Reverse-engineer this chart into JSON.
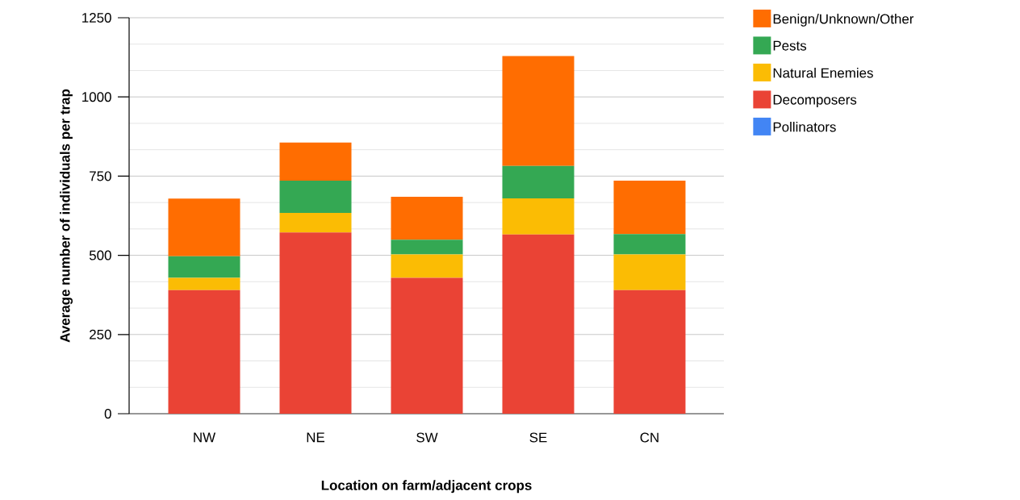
{
  "chart_data": {
    "type": "bar",
    "stacked": true,
    "xlabel": "Location on farm/adjacent crops",
    "ylabel": "Average number of individuals per trap",
    "categories": [
      "NW",
      "NE",
      "SW",
      "SE",
      "CN"
    ],
    "series": [
      {
        "name": "Pollinators",
        "color": "#4285f4",
        "values": [
          0,
          0,
          0,
          0,
          0
        ]
      },
      {
        "name": "Decomposers",
        "color": "#ea4335",
        "values": [
          390,
          572,
          429,
          566,
          390
        ]
      },
      {
        "name": "Natural Enemies",
        "color": "#fbbc04",
        "values": [
          39,
          62,
          74,
          114,
          113
        ]
      },
      {
        "name": "Pests",
        "color": "#34a853",
        "values": [
          68,
          102,
          46,
          102,
          64
        ]
      },
      {
        "name": "Benign/Unknown/Other",
        "color": "#ff6d01",
        "values": [
          182,
          120,
          136,
          347,
          169
        ]
      }
    ],
    "ylim": [
      0,
      1250
    ],
    "yticks": [
      0,
      250,
      500,
      750,
      1000,
      1250
    ],
    "grid": "y",
    "legend": "top right"
  }
}
